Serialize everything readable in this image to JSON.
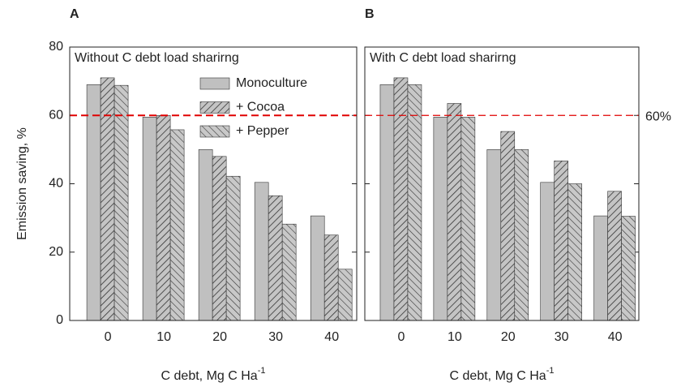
{
  "chart_data": [
    {
      "type": "bar",
      "panel": "A",
      "title": "Without C debt load sharirng",
      "y_label": "Emission saving, %",
      "x_label": "C debt, Mg C Ha",
      "x_label_sup": "-1",
      "categories": [
        0,
        10,
        20,
        30,
        40
      ],
      "series": [
        {
          "name": "Monoculture",
          "color": "#c0c0c0",
          "values": [
            69,
            59.5,
            50,
            40.4,
            30.6
          ]
        },
        {
          "name": "+ Cocoa",
          "color": "#b0b0b0",
          "values": [
            71,
            60,
            48,
            36.5,
            25
          ]
        },
        {
          "name": "+ Pepper",
          "color": "#b8b8b8",
          "values": [
            68.8,
            55.8,
            42.2,
            28.2,
            15
          ]
        }
      ],
      "ylim": [
        0,
        80
      ],
      "yticks": [
        0,
        20,
        40,
        60,
        80
      ],
      "legend": "upper right",
      "reference_line": {
        "value": 60,
        "color": "#e00000"
      }
    },
    {
      "type": "bar",
      "panel": "B",
      "title": "With C debt load sharirng",
      "x_label": "C debt, Mg C Ha",
      "x_label_sup": "-1",
      "categories": [
        0,
        10,
        20,
        30,
        40
      ],
      "series": [
        {
          "name": "Monoculture",
          "color": "#c0c0c0",
          "values": [
            69,
            59.5,
            50,
            40.4,
            30.6
          ]
        },
        {
          "name": "+ Cocoa",
          "color": "#b0b0b0",
          "values": [
            71,
            63.5,
            55.3,
            46.7,
            37.8
          ]
        },
        {
          "name": "+ Pepper",
          "color": "#b8b8b8",
          "values": [
            69,
            59.5,
            50,
            40,
            30.5
          ]
        }
      ],
      "ylim": [
        0,
        80
      ],
      "yticks": [
        0,
        20,
        40,
        60,
        80
      ],
      "reference_line": {
        "value": 60,
        "color": "#e00000",
        "label": "60%"
      }
    }
  ]
}
